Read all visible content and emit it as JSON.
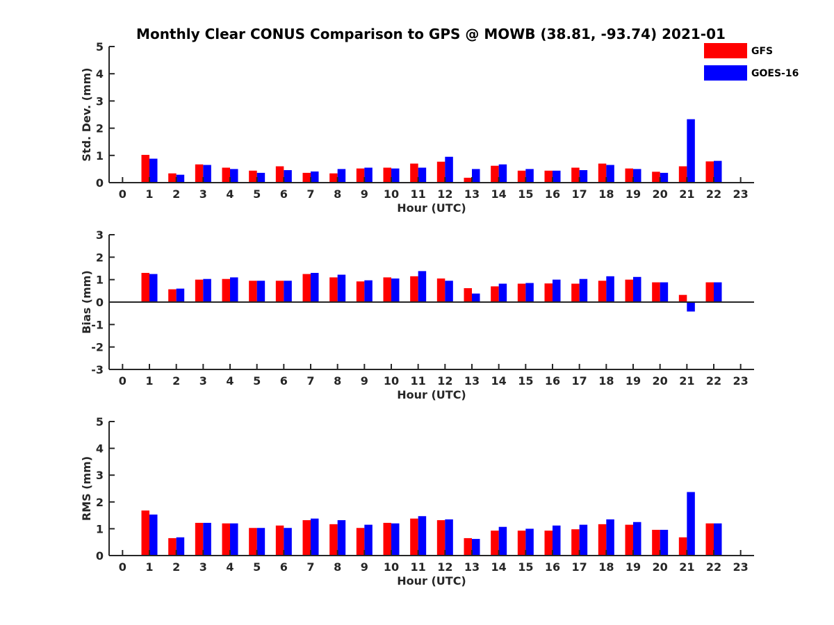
{
  "chart_data": {
    "type": "bar",
    "title": "Monthly Clear CONUS Comparison to GPS @ MOWB (38.81, -93.74) 2021-01",
    "legend": {
      "placement": "top-right",
      "entries": [
        {
          "name": "GFS",
          "color": "#ff0000"
        },
        {
          "name": "GOES-16",
          "color": "#0000ff"
        }
      ]
    },
    "categories": [
      "0",
      "1",
      "2",
      "3",
      "4",
      "5",
      "6",
      "7",
      "8",
      "9",
      "10",
      "11",
      "12",
      "13",
      "14",
      "15",
      "16",
      "17",
      "18",
      "19",
      "20",
      "21",
      "22",
      "23"
    ],
    "panels": [
      {
        "ylabel": "Std. Dev. (mm)",
        "xlabel": "Hour (UTC)",
        "ylim": [
          0,
          5
        ],
        "yticks": [
          "0",
          "1",
          "2",
          "3",
          "4",
          "5"
        ],
        "series": [
          {
            "name": "GFS",
            "color": "#ff0000",
            "values": [
              null,
              1.02,
              0.34,
              0.67,
              0.55,
              0.44,
              0.6,
              0.36,
              0.34,
              0.52,
              0.55,
              0.7,
              0.77,
              0.18,
              0.62,
              0.44,
              0.44,
              0.55,
              0.7,
              0.52,
              0.4,
              0.6,
              0.78,
              null
            ]
          },
          {
            "name": "GOES-16",
            "color": "#0000ff",
            "values": [
              null,
              0.88,
              0.29,
              0.65,
              0.5,
              0.36,
              0.46,
              0.41,
              0.5,
              0.55,
              0.52,
              0.55,
              0.95,
              0.5,
              0.67,
              0.5,
              0.44,
              0.46,
              0.65,
              0.5,
              0.36,
              2.33,
              0.8,
              null
            ]
          }
        ]
      },
      {
        "ylabel": "Bias (mm)",
        "xlabel": "Hour (UTC)",
        "ylim": [
          -3,
          3
        ],
        "yticks": [
          "-3",
          "-2",
          "-1",
          "0",
          "1",
          "2",
          "3"
        ],
        "series": [
          {
            "name": "GFS",
            "color": "#ff0000",
            "values": [
              null,
              1.3,
              0.57,
              1.0,
              1.03,
              0.95,
              0.95,
              1.25,
              1.1,
              0.92,
              1.1,
              1.15,
              1.05,
              0.62,
              0.7,
              0.82,
              0.83,
              0.82,
              0.95,
              1.0,
              0.88,
              0.32,
              0.88,
              null
            ]
          },
          {
            "name": "GOES-16",
            "color": "#0000ff",
            "values": [
              null,
              1.25,
              0.6,
              1.03,
              1.1,
              0.95,
              0.95,
              1.3,
              1.22,
              0.97,
              1.05,
              1.38,
              0.95,
              0.38,
              0.82,
              0.85,
              1.0,
              1.03,
              1.15,
              1.12,
              0.88,
              -0.42,
              0.88,
              null
            ]
          }
        ]
      },
      {
        "ylabel": "RMS (mm)",
        "xlabel": "Hour (UTC)",
        "ylim": [
          0,
          5
        ],
        "yticks": [
          "0",
          "1",
          "2",
          "3",
          "4",
          "5"
        ],
        "series": [
          {
            "name": "GFS",
            "color": "#ff0000",
            "values": [
              null,
              1.68,
              0.65,
              1.22,
              1.2,
              1.03,
              1.12,
              1.32,
              1.17,
              1.03,
              1.22,
              1.38,
              1.32,
              0.65,
              0.93,
              0.93,
              0.93,
              0.98,
              1.17,
              1.15,
              0.96,
              0.68,
              1.2,
              null
            ]
          },
          {
            "name": "GOES-16",
            "color": "#0000ff",
            "values": [
              null,
              1.53,
              0.68,
              1.22,
              1.2,
              1.03,
              1.03,
              1.38,
              1.32,
              1.15,
              1.2,
              1.47,
              1.35,
              0.62,
              1.07,
              1.0,
              1.12,
              1.15,
              1.35,
              1.25,
              0.96,
              2.37,
              1.2,
              null
            ]
          }
        ]
      }
    ]
  }
}
